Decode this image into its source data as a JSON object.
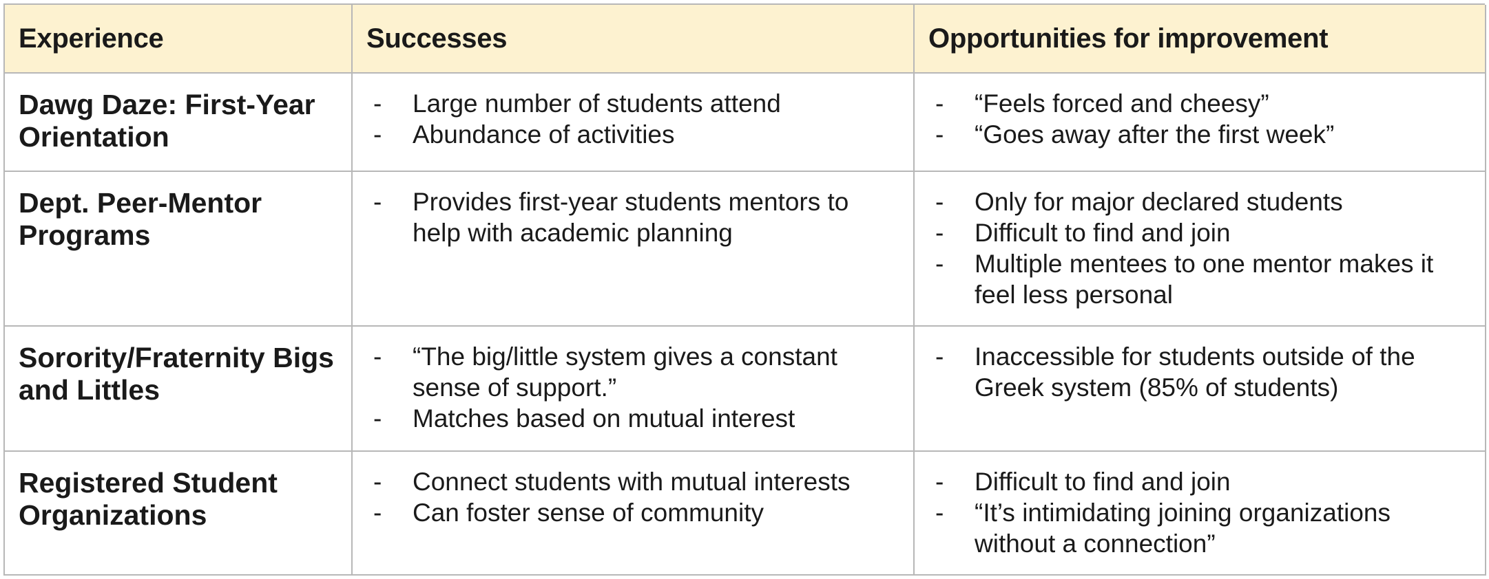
{
  "table": {
    "headers": [
      "Experience",
      "Successes",
      "Opportunities for improvement"
    ],
    "rows": [
      {
        "experience": "Dawg Daze: First-Year Orientation",
        "successes": [
          "Large number of students attend",
          "Abundance of activities"
        ],
        "opportunities": [
          "“Feels forced and cheesy”",
          "“Goes away after the first week”"
        ]
      },
      {
        "experience": "Dept. Peer-Mentor Programs",
        "successes": [
          "Provides first-year students mentors to help with academic planning"
        ],
        "opportunities": [
          "Only for major declared students",
          "Difficult to find and join",
          "Multiple mentees to one mentor makes it feel less personal"
        ]
      },
      {
        "experience": "Sorority/Fraternity Bigs and Littles",
        "successes": [
          "“The big/little system gives a constant sense of support.”",
          "Matches based on mutual interest"
        ],
        "opportunities": [
          "Inaccessible for students outside of the Greek system (85% of students)"
        ]
      },
      {
        "experience": "Registered Student Organizations",
        "successes": [
          "Connect students with mutual interests",
          "Can foster sense of community"
        ],
        "opportunities": [
          "Difficult to find and join",
          "“It’s intimidating joining organizations without a connection”"
        ]
      }
    ],
    "bullet_marker": "-",
    "colors": {
      "header_bg": "#fdf2d0",
      "border": "#b7b7b7",
      "text": "#1a1a1a"
    }
  }
}
